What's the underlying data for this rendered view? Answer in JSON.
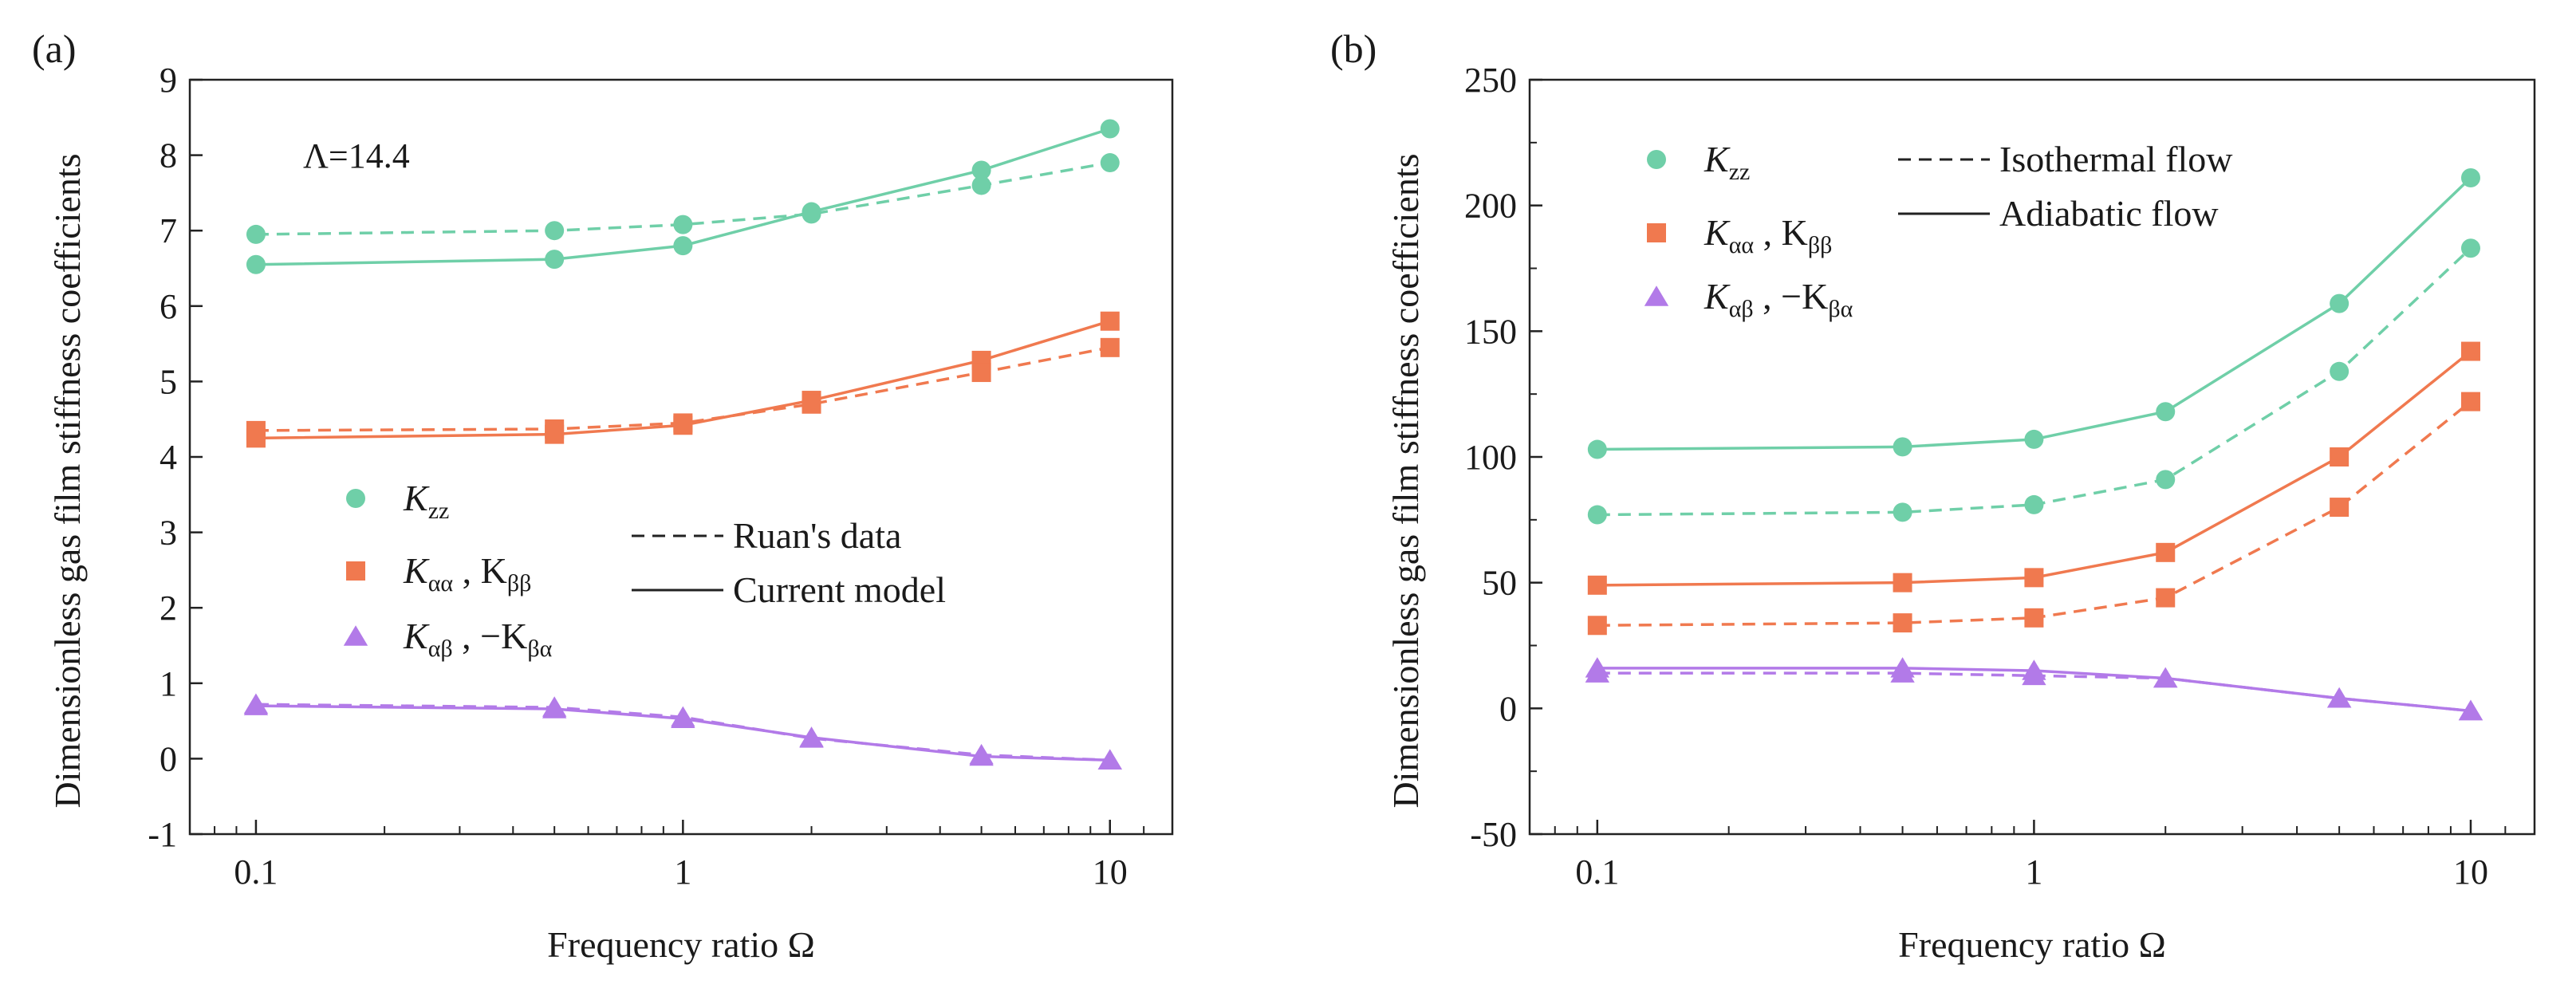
{
  "chart_data": [
    {
      "type": "line",
      "panel_label": "(a)",
      "xscale": "log",
      "xlabel": "Frequency ratio Ω",
      "ylabel": "Dimensionless gas film stiffness coefficients",
      "x": [
        0.1,
        0.5,
        1,
        2,
        5,
        10
      ],
      "xticks": [
        0.1,
        1,
        10
      ],
      "xtick_labels": [
        "0.1",
        "1",
        "10"
      ],
      "xlim": [
        0.07,
        14
      ],
      "ylim": [
        -1,
        9
      ],
      "yticks": [
        -1,
        0,
        1,
        2,
        3,
        4,
        5,
        6,
        7,
        8,
        9
      ],
      "ytick_labels": [
        "-1",
        "0",
        "1",
        "2",
        "3",
        "4",
        "5",
        "6",
        "7",
        "8",
        "9"
      ],
      "annotation": "Λ=14.4",
      "legend_markers": [
        {
          "marker": "circle",
          "color": "#6fcfa8",
          "label_main": "K",
          "label_sub": "zz",
          "label_rest": ""
        },
        {
          "marker": "square",
          "color": "#f0794f",
          "label_main": "K",
          "label_sub": "αα",
          "label_rest": " , K",
          "label_sub2": "ββ"
        },
        {
          "marker": "triangle",
          "color": "#b27ae8",
          "label_main": "K",
          "label_sub": "αβ",
          "label_rest": " , −K",
          "label_sub2": "βα"
        }
      ],
      "legend_lines": [
        {
          "style": "dashed",
          "label": "Ruan's data"
        },
        {
          "style": "solid",
          "label": "Current model"
        }
      ],
      "series": [
        {
          "name": "Kzz current model",
          "style": "solid",
          "marker": "circle",
          "color": "#6fcfa8",
          "values": [
            6.55,
            6.62,
            6.8,
            7.25,
            7.8,
            8.35
          ]
        },
        {
          "name": "Kzz Ruan's data",
          "style": "dashed",
          "marker": "circle",
          "color": "#6fcfa8",
          "values": [
            6.95,
            7.0,
            7.08,
            7.22,
            7.6,
            7.9
          ]
        },
        {
          "name": "Kαα, Kββ current model",
          "style": "solid",
          "marker": "square",
          "color": "#f0794f",
          "values": [
            4.25,
            4.3,
            4.42,
            4.75,
            5.28,
            5.8
          ]
        },
        {
          "name": "Kαα, Kββ Ruan's data",
          "style": "dashed",
          "marker": "square",
          "color": "#f0794f",
          "values": [
            4.35,
            4.37,
            4.45,
            4.7,
            5.12,
            5.45
          ]
        },
        {
          "name": "Kαβ, −Kβα current model",
          "style": "solid",
          "marker": "triangle",
          "color": "#b27ae8",
          "values": [
            0.7,
            0.66,
            0.53,
            0.28,
            0.03,
            -0.02
          ]
        },
        {
          "name": "Kαβ, −Kβα Ruan's data",
          "style": "dashed",
          "marker": "triangle",
          "color": "#b27ae8",
          "values": [
            0.72,
            0.68,
            0.55,
            0.27,
            0.05,
            -0.02
          ]
        }
      ]
    },
    {
      "type": "line",
      "panel_label": "(b)",
      "xscale": "log",
      "xlabel": "Frequency ratio Ω",
      "ylabel": "Dimensionless gas film stiffness coefficients",
      "x": [
        0.1,
        0.5,
        1,
        2,
        5,
        10
      ],
      "xticks": [
        0.1,
        1,
        10
      ],
      "xtick_labels": [
        "0.1",
        "1",
        "10"
      ],
      "xlim": [
        0.07,
        14
      ],
      "ylim": [
        -50,
        250
      ],
      "yticks": [
        -50,
        0,
        50,
        100,
        150,
        200,
        250
      ],
      "ytick_labels": [
        "-50",
        "0",
        "50",
        "100",
        "150",
        "200",
        "250"
      ],
      "legend_markers": [
        {
          "marker": "circle",
          "color": "#6fcfa8",
          "label_main": "K",
          "label_sub": "zz",
          "label_rest": ""
        },
        {
          "marker": "square",
          "color": "#f0794f",
          "label_main": "K",
          "label_sub": "αα",
          "label_rest": " , K",
          "label_sub2": "ββ"
        },
        {
          "marker": "triangle",
          "color": "#b27ae8",
          "label_main": "K",
          "label_sub": "αβ",
          "label_rest": " , −K",
          "label_sub2": "βα"
        }
      ],
      "legend_lines": [
        {
          "style": "dashed",
          "label": "Isothermal flow"
        },
        {
          "style": "solid",
          "label": "Adiabatic flow"
        }
      ],
      "series": [
        {
          "name": "Kzz adiabatic",
          "style": "solid",
          "marker": "circle",
          "color": "#6fcfa8",
          "values": [
            103,
            104,
            107,
            118,
            161,
            211
          ]
        },
        {
          "name": "Kzz isothermal",
          "style": "dashed",
          "marker": "circle",
          "color": "#6fcfa8",
          "values": [
            77,
            78,
            81,
            91,
            134,
            183
          ]
        },
        {
          "name": "Kαα, Kββ adiabatic",
          "style": "solid",
          "marker": "square",
          "color": "#f0794f",
          "values": [
            49,
            50,
            52,
            62,
            100,
            142
          ]
        },
        {
          "name": "Kαα, Kββ isothermal",
          "style": "dashed",
          "marker": "square",
          "color": "#f0794f",
          "values": [
            33,
            34,
            36,
            44,
            80,
            122
          ]
        },
        {
          "name": "Kαβ, −Kβα adiabatic",
          "style": "solid",
          "marker": "triangle",
          "color": "#b27ae8",
          "values": [
            16,
            16,
            15,
            12,
            4,
            -1
          ]
        },
        {
          "name": "Kαβ, −Kβα isothermal",
          "style": "dashed",
          "marker": "triangle",
          "color": "#b27ae8",
          "values": [
            14,
            14,
            13,
            12,
            4,
            -1
          ]
        }
      ]
    }
  ]
}
